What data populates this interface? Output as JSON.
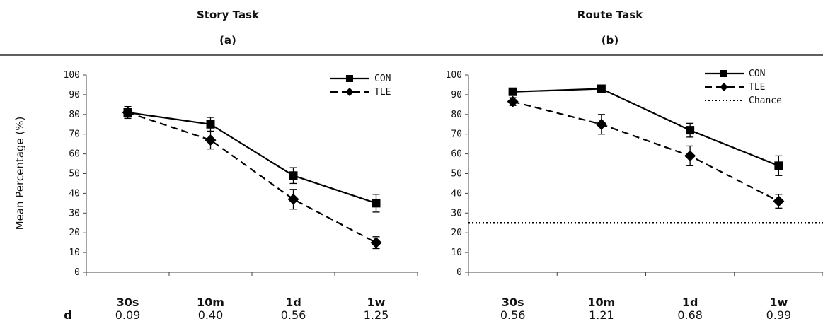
{
  "chart_data": [
    {
      "type": "line",
      "title": "Story Task",
      "subtitle": "(a)",
      "ylabel": "Mean Percentage (%)",
      "ylim": [
        0,
        100
      ],
      "yticks": [
        0,
        10,
        20,
        30,
        40,
        50,
        60,
        70,
        80,
        90,
        100
      ],
      "categories": [
        "30s",
        "10m",
        "1d",
        "1w"
      ],
      "series": [
        {
          "name": "CON",
          "marker": "square",
          "dash": "solid",
          "values": [
            81,
            75,
            49,
            35
          ],
          "errors": [
            3,
            3.5,
            4,
            4.5
          ]
        },
        {
          "name": "TLE",
          "marker": "diamond",
          "dash": "dashed",
          "values": [
            81,
            67,
            37,
            15
          ],
          "errors": [
            3,
            4.5,
            5,
            3
          ]
        }
      ],
      "effect_size_label": "d",
      "effect_sizes": [
        "0.09",
        "0.40",
        "0.56",
        "1.25"
      ],
      "legend": "top-right"
    },
    {
      "type": "line",
      "title": "Route Task",
      "subtitle": "(b)",
      "ylim": [
        0,
        100
      ],
      "yticks": [
        0,
        10,
        20,
        30,
        40,
        50,
        60,
        70,
        80,
        90,
        100
      ],
      "categories": [
        "30s",
        "10m",
        "1d",
        "1w"
      ],
      "series": [
        {
          "name": "CON",
          "marker": "square",
          "dash": "solid",
          "values": [
            91.5,
            93,
            72,
            54
          ],
          "errors": [
            1.5,
            1.5,
            3.5,
            5
          ]
        },
        {
          "name": "TLE",
          "marker": "diamond",
          "dash": "dashed",
          "values": [
            86.5,
            75,
            59,
            36
          ],
          "errors": [
            2,
            5,
            5,
            3.5
          ]
        }
      ],
      "reference_lines": [
        {
          "name": "Chance",
          "value": 25,
          "dash": "dotted"
        }
      ],
      "effect_sizes": [
        "0.56",
        "1.21",
        "0.68",
        "0.99"
      ],
      "legend": "top-right"
    }
  ]
}
